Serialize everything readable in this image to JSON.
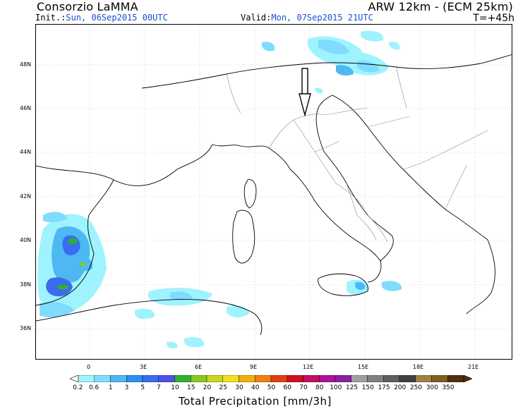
{
  "header": {
    "org": "Consorzio LaMMA",
    "model": "ARW 12km - (ECM 25km)",
    "init_label": "Init.:",
    "init_value": "Sun, 06Sep2015 00UTC",
    "valid_label": "Valid:",
    "valid_value": "Mon, 07Sep2015 21UTC",
    "lead_time": "T=+45h"
  },
  "map": {
    "lat_labels": [
      "48N",
      "46N",
      "44N",
      "42N",
      "40N",
      "38N",
      "36N"
    ],
    "lon_labels": [
      "0",
      "3E",
      "6E",
      "9E",
      "12E",
      "15E",
      "18E",
      "21E"
    ]
  },
  "colorbar": {
    "title": "Total Precipitation [mm/3h]",
    "levels": [
      "0.2",
      "0.6",
      "1",
      "3",
      "5",
      "7",
      "10",
      "15",
      "20",
      "25",
      "30",
      "40",
      "50",
      "60",
      "70",
      "80",
      "100",
      "125",
      "150",
      "175",
      "200",
      "250",
      "300",
      "350"
    ],
    "colors": [
      "#9ff3ff",
      "#7fdcff",
      "#4db8f2",
      "#2e8ff0",
      "#3a6cf0",
      "#5050e8",
      "#2fb02f",
      "#8ac820",
      "#c8d820",
      "#f0e020",
      "#f0b010",
      "#f08010",
      "#e04010",
      "#d01020",
      "#c01060",
      "#b0109a",
      "#8a20a0",
      "#a0a0a0",
      "#808080",
      "#606060",
      "#404040",
      "#a08040",
      "#806020",
      "#503010"
    ],
    "low_end_color": "#ffffff",
    "high_end_color": "#503010"
  }
}
